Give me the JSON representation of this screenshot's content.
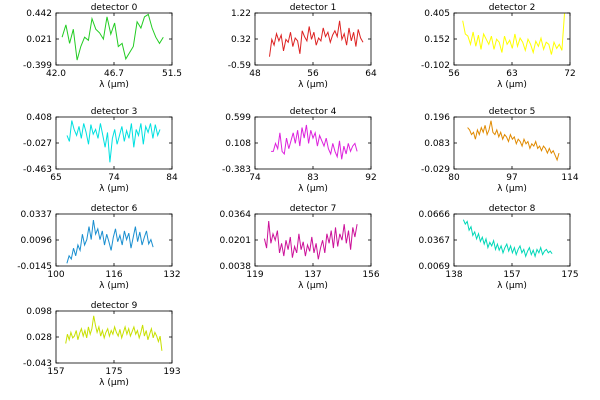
{
  "page": {
    "background": "#ffffff"
  },
  "chart_data": [
    {
      "type": "line",
      "title": "detector 0",
      "xlabel": "λ (μm)",
      "color": "#22cc22",
      "xlim": [
        42.0,
        51.5
      ],
      "ylim": [
        -0.399,
        0.442
      ],
      "xticks": [
        "42.0",
        "46.7",
        "51.5"
      ],
      "yticks": [
        "-0.399",
        "0.021",
        "0.442"
      ],
      "x": [
        42.5,
        42.81,
        43.11,
        43.42,
        43.73,
        44.03,
        44.34,
        44.65,
        44.95,
        45.26,
        45.57,
        45.88,
        46.18,
        46.49,
        46.8,
        47.1,
        47.41,
        47.72,
        48.02,
        48.33,
        48.64,
        48.95,
        49.25,
        49.56,
        49.87,
        50.17,
        50.48,
        50.79
      ],
      "y": [
        0.05,
        0.25,
        -0.05,
        0.18,
        -0.32,
        -0.1,
        0.05,
        0.0,
        0.35,
        0.18,
        0.12,
        0.02,
        0.38,
        0.1,
        0.28,
        -0.1,
        -0.05,
        -0.3,
        -0.2,
        -0.1,
        0.3,
        0.2,
        0.38,
        0.42,
        0.2,
        0.05,
        -0.05,
        0.05
      ]
    },
    {
      "type": "line",
      "title": "detector 1",
      "xlabel": "λ (μm)",
      "color": "#dd2222",
      "xlim": [
        48,
        64
      ],
      "ylim": [
        -0.59,
        1.22
      ],
      "xticks": [
        "48",
        "56",
        "64"
      ],
      "yticks": [
        "-0.59",
        "0.32",
        "1.22"
      ],
      "x": [
        50.0,
        50.32,
        50.64,
        50.97,
        51.29,
        51.61,
        51.93,
        52.26,
        52.58,
        52.9,
        53.22,
        53.54,
        53.87,
        54.19,
        54.51,
        54.83,
        55.16,
        55.48,
        55.8,
        56.12,
        56.44,
        56.77,
        57.09,
        57.41,
        57.73,
        58.06,
        58.38,
        58.7,
        59.02,
        59.34,
        59.67,
        59.99,
        60.31,
        60.63,
        60.96,
        61.28,
        61.6,
        61.92,
        62.24,
        62.57,
        62.89
      ],
      "y": [
        -0.3,
        0.3,
        0.1,
        0.5,
        0.25,
        0.45,
        -0.1,
        0.3,
        0.2,
        0.55,
        0.05,
        0.35,
        0.25,
        -0.2,
        0.6,
        0.4,
        0.25,
        0.75,
        0.3,
        0.55,
        0.1,
        0.35,
        0.25,
        0.7,
        0.4,
        0.55,
        0.2,
        0.45,
        0.6,
        0.4,
        0.95,
        0.3,
        0.5,
        0.1,
        0.7,
        0.25,
        0.55,
        0.05,
        0.65,
        0.35,
        0.2
      ]
    },
    {
      "type": "line",
      "title": "detector 2",
      "xlabel": "λ (μm)",
      "color": "#ffff00",
      "xlim": [
        56,
        72
      ],
      "ylim": [
        -0.102,
        0.405
      ],
      "xticks": [
        "56",
        "63",
        "72"
      ],
      "yticks": [
        "-0.102",
        "0.152",
        "0.405"
      ],
      "x": [
        57.2,
        57.56,
        57.92,
        58.28,
        58.64,
        59.0,
        59.36,
        59.72,
        60.08,
        60.44,
        60.8,
        61.16,
        61.52,
        61.88,
        62.24,
        62.6,
        62.96,
        63.32,
        63.68,
        64.04,
        64.4,
        64.76,
        65.12,
        65.48,
        65.84,
        66.2,
        66.56,
        66.92,
        67.28,
        67.64,
        68.0,
        68.36,
        68.72,
        69.08,
        69.44,
        69.8,
        70.16,
        70.52,
        70.88,
        71.24
      ],
      "y": [
        0.33,
        0.2,
        0.18,
        0.1,
        0.22,
        0.08,
        0.19,
        0.05,
        0.2,
        0.15,
        0.1,
        0.18,
        0.05,
        0.15,
        0.12,
        0.02,
        0.18,
        0.1,
        0.14,
        0.06,
        0.2,
        0.08,
        0.16,
        0.12,
        0.04,
        0.15,
        0.1,
        0.02,
        0.13,
        0.08,
        0.16,
        0.05,
        0.12,
        0.1,
        0.0,
        0.12,
        0.06,
        0.1,
        0.04,
        0.4
      ]
    },
    {
      "type": "line",
      "title": "detector 3",
      "xlabel": "λ (μm)",
      "color": "#00e0e0",
      "xlim": [
        65,
        84
      ],
      "ylim": [
        -0.463,
        0.408
      ],
      "xticks": [
        "65",
        "74",
        "84"
      ],
      "yticks": [
        "-0.463",
        "-0.027",
        "0.408"
      ],
      "x": [
        66.8,
        67.19,
        67.58,
        67.97,
        68.37,
        68.76,
        69.15,
        69.54,
        69.93,
        70.32,
        70.71,
        71.1,
        71.49,
        71.88,
        72.27,
        72.66,
        73.05,
        73.44,
        73.83,
        74.23,
        74.62,
        75.01,
        75.4,
        75.79,
        76.18,
        76.57,
        76.96,
        77.35,
        77.74,
        78.13,
        78.52,
        78.91,
        79.3,
        79.7,
        80.09,
        80.48,
        80.87,
        81.26,
        81.65,
        82.04
      ],
      "y": [
        0.1,
        0.0,
        0.35,
        0.2,
        0.1,
        0.25,
        0.05,
        0.3,
        0.15,
        -0.05,
        0.28,
        0.12,
        0.2,
        0.05,
        0.3,
        0.1,
        -0.1,
        0.15,
        -0.35,
        0.05,
        0.2,
        -0.05,
        0.1,
        0.25,
        0.0,
        0.18,
        0.05,
        0.3,
        -0.1,
        0.2,
        0.1,
        0.3,
        -0.05,
        0.25,
        0.15,
        0.3,
        0.05,
        0.28,
        0.1,
        0.2
      ]
    },
    {
      "type": "line",
      "title": "detector 4",
      "xlabel": "λ (μm)",
      "color": "#dd22dd",
      "xlim": [
        74,
        92
      ],
      "ylim": [
        -0.383,
        0.599
      ],
      "xticks": [
        "74",
        "83",
        "92"
      ],
      "yticks": [
        "-0.383",
        "0.108",
        "0.599"
      ],
      "x": [
        76.5,
        76.84,
        77.18,
        77.53,
        77.87,
        78.21,
        78.55,
        78.89,
        79.24,
        79.58,
        79.92,
        80.26,
        80.61,
        80.95,
        81.29,
        81.63,
        81.97,
        82.32,
        82.66,
        83.0,
        83.34,
        83.68,
        84.03,
        84.37,
        84.71,
        85.05,
        85.39,
        85.74,
        86.08,
        86.42,
        86.76,
        87.11,
        87.45,
        87.79,
        88.13,
        88.47,
        88.82,
        89.16,
        89.5,
        89.84
      ],
      "y": [
        -0.05,
        -0.05,
        0.1,
        0.0,
        0.3,
        -0.05,
        -0.1,
        0.2,
        0.0,
        0.15,
        0.3,
        0.1,
        0.35,
        0.05,
        0.4,
        0.2,
        0.45,
        0.1,
        0.35,
        0.2,
        0.3,
        0.05,
        0.25,
        0.15,
        0.05,
        0.2,
        0.0,
        -0.1,
        0.1,
        -0.05,
        -0.15,
        0.15,
        -0.2,
        0.05,
        -0.1,
        0.1,
        -0.05,
        0.05,
        0.1,
        -0.05
      ]
    },
    {
      "type": "line",
      "title": "detector 5",
      "xlabel": "λ (μm)",
      "color": "#e08a00",
      "xlim": [
        80,
        114
      ],
      "ylim": [
        -0.029,
        0.196
      ],
      "xticks": [
        "80",
        "97",
        "114"
      ],
      "yticks": [
        "-0.029",
        "0.083",
        "0.196"
      ],
      "x": [
        84.0,
        84.57,
        85.14,
        85.71,
        86.28,
        86.85,
        87.42,
        87.99,
        88.56,
        89.13,
        89.7,
        90.27,
        90.84,
        91.41,
        91.98,
        92.55,
        93.12,
        93.69,
        94.26,
        94.83,
        95.4,
        95.97,
        96.54,
        97.11,
        97.68,
        98.25,
        98.82,
        99.39,
        99.96,
        100.53,
        101.1,
        101.67,
        102.24,
        102.81,
        103.38,
        103.95,
        104.52,
        105.09,
        105.66,
        106.23,
        106.8,
        107.37,
        107.94,
        108.51,
        109.08,
        109.65,
        110.22,
        110.79
      ],
      "y": [
        0.15,
        0.14,
        0.12,
        0.13,
        0.1,
        0.14,
        0.12,
        0.15,
        0.13,
        0.16,
        0.12,
        0.14,
        0.18,
        0.13,
        0.12,
        0.14,
        0.11,
        0.13,
        0.1,
        0.12,
        0.11,
        0.09,
        0.12,
        0.1,
        0.11,
        0.08,
        0.1,
        0.09,
        0.07,
        0.1,
        0.08,
        0.09,
        0.06,
        0.08,
        0.07,
        0.09,
        0.06,
        0.07,
        0.05,
        0.07,
        0.06,
        0.04,
        0.06,
        0.04,
        0.05,
        0.03,
        0.01,
        0.04
      ]
    },
    {
      "type": "line",
      "title": "detector 6",
      "xlabel": "λ (μm)",
      "color": "#1a8fd0",
      "xlim": [
        100,
        132
      ],
      "ylim": [
        -0.0145,
        0.0337
      ],
      "xticks": [
        "100",
        "116",
        "132"
      ],
      "yticks": [
        "-0.0145",
        "0.0096",
        "0.0337"
      ],
      "x": [
        103.0,
        103.61,
        104.22,
        104.83,
        105.44,
        106.05,
        106.66,
        107.27,
        107.88,
        108.49,
        109.1,
        109.71,
        110.32,
        110.93,
        111.54,
        112.15,
        112.76,
        113.37,
        113.98,
        114.59,
        115.2,
        115.81,
        116.42,
        117.03,
        117.64,
        118.25,
        118.86,
        119.47,
        120.08,
        120.69,
        121.3,
        121.91,
        122.52,
        123.13,
        123.74,
        124.35,
        124.96,
        125.57,
        126.18,
        126.79
      ],
      "y": [
        -0.012,
        -0.005,
        -0.008,
        0.002,
        -0.005,
        0.005,
        0.0,
        0.015,
        0.005,
        0.01,
        0.022,
        0.01,
        0.028,
        0.015,
        0.02,
        0.01,
        0.018,
        0.005,
        0.015,
        0.008,
        0.0,
        0.012,
        0.02,
        0.008,
        0.014,
        0.005,
        0.018,
        0.01,
        0.016,
        0.002,
        0.012,
        0.022,
        0.008,
        0.017,
        0.005,
        0.012,
        0.018,
        0.006,
        0.01,
        0.003
      ]
    },
    {
      "type": "line",
      "title": "detector 7",
      "xlabel": "λ (μm)",
      "color": "#cc1199",
      "xlim": [
        119,
        156
      ],
      "ylim": [
        0.0038,
        0.0364
      ],
      "xticks": [
        "119",
        "137",
        "156"
      ],
      "yticks": [
        "0.0038",
        "0.0201",
        "0.0364"
      ],
      "x": [
        122.0,
        122.69,
        123.38,
        124.06,
        124.75,
        125.44,
        126.13,
        126.81,
        127.5,
        128.19,
        128.88,
        129.56,
        130.25,
        130.94,
        131.63,
        132.31,
        133.0,
        133.69,
        134.38,
        135.06,
        135.75,
        136.44,
        137.13,
        137.81,
        138.5,
        139.19,
        139.88,
        140.56,
        141.25,
        141.94,
        142.63,
        143.31,
        144.0,
        144.69,
        145.38,
        146.06,
        146.75,
        147.44,
        148.13,
        148.81,
        149.5,
        150.19,
        150.88,
        151.56
      ],
      "y": [
        0.021,
        0.015,
        0.032,
        0.018,
        0.024,
        0.02,
        0.026,
        0.012,
        0.018,
        0.01,
        0.02,
        0.014,
        0.022,
        0.009,
        0.016,
        0.012,
        0.024,
        0.014,
        0.019,
        0.01,
        0.017,
        0.013,
        0.022,
        0.012,
        0.018,
        0.008,
        0.015,
        0.02,
        0.012,
        0.024,
        0.018,
        0.026,
        0.015,
        0.028,
        0.016,
        0.024,
        0.02,
        0.03,
        0.018,
        0.026,
        0.014,
        0.028,
        0.022,
        0.03
      ]
    },
    {
      "type": "line",
      "title": "detector 8",
      "xlabel": "λ (μm)",
      "color": "#00d8b8",
      "xlim": [
        138,
        175
      ],
      "ylim": [
        0.0069,
        0.0666
      ],
      "xticks": [
        "138",
        "157",
        "175"
      ],
      "yticks": [
        "0.0069",
        "0.0367",
        "0.0666"
      ],
      "x": [
        141.0,
        141.6,
        142.2,
        142.81,
        143.41,
        144.01,
        144.61,
        145.21,
        145.81,
        146.42,
        147.02,
        147.62,
        148.22,
        148.82,
        149.42,
        150.03,
        150.63,
        151.23,
        151.83,
        152.43,
        153.03,
        153.64,
        154.24,
        154.84,
        155.44,
        156.04,
        156.64,
        157.25,
        157.85,
        158.45,
        159.05,
        159.65,
        160.25,
        160.86,
        161.46,
        162.06,
        162.66,
        163.26,
        163.86,
        164.47,
        165.07,
        165.67,
        166.27,
        166.87,
        167.47,
        168.08,
        168.68,
        169.28
      ],
      "y": [
        0.06,
        0.055,
        0.058,
        0.048,
        0.052,
        0.042,
        0.046,
        0.038,
        0.044,
        0.035,
        0.04,
        0.032,
        0.038,
        0.028,
        0.034,
        0.03,
        0.036,
        0.026,
        0.032,
        0.025,
        0.03,
        0.022,
        0.028,
        0.032,
        0.024,
        0.03,
        0.022,
        0.028,
        0.02,
        0.026,
        0.03,
        0.022,
        0.026,
        0.018,
        0.024,
        0.028,
        0.02,
        0.025,
        0.018,
        0.026,
        0.022,
        0.028,
        0.02,
        0.024,
        0.026,
        0.022,
        0.024,
        0.021
      ]
    },
    {
      "type": "line",
      "title": "detector 9",
      "xlabel": "λ (μm)",
      "color": "#c8e000",
      "xlim": [
        157,
        193
      ],
      "ylim": [
        -0.043,
        0.098
      ],
      "xticks": [
        "157",
        "175",
        "193"
      ],
      "yticks": [
        "-0.043",
        "0.028",
        "0.098"
      ],
      "x": [
        160.0,
        160.54,
        161.09,
        161.63,
        162.17,
        162.72,
        163.26,
        163.8,
        164.34,
        164.89,
        165.43,
        165.97,
        166.52,
        167.06,
        167.6,
        168.15,
        168.69,
        169.23,
        169.77,
        170.32,
        170.86,
        171.4,
        171.95,
        172.49,
        173.03,
        173.58,
        174.12,
        174.66,
        175.2,
        175.75,
        176.29,
        176.83,
        177.38,
        177.92,
        178.46,
        179.01,
        179.55,
        180.09,
        180.63,
        181.18,
        181.72,
        182.26,
        182.81,
        183.35,
        183.89,
        184.44,
        184.98,
        185.52,
        186.06,
        186.61,
        187.15,
        187.69,
        188.24,
        188.78,
        189.32,
        189.87
      ],
      "y": [
        0.01,
        0.035,
        0.02,
        0.04,
        0.025,
        0.03,
        0.045,
        0.02,
        0.038,
        0.05,
        0.03,
        0.045,
        0.025,
        0.055,
        0.035,
        0.05,
        0.085,
        0.06,
        0.04,
        0.055,
        0.03,
        0.045,
        0.025,
        0.04,
        0.05,
        0.03,
        0.045,
        0.035,
        0.055,
        0.04,
        0.03,
        0.048,
        0.025,
        0.04,
        0.055,
        0.035,
        0.05,
        0.03,
        0.042,
        0.055,
        0.035,
        0.045,
        0.025,
        0.04,
        0.06,
        0.03,
        0.045,
        0.02,
        0.035,
        0.05,
        0.025,
        0.04,
        0.03,
        0.015,
        0.03,
        -0.01
      ]
    }
  ]
}
